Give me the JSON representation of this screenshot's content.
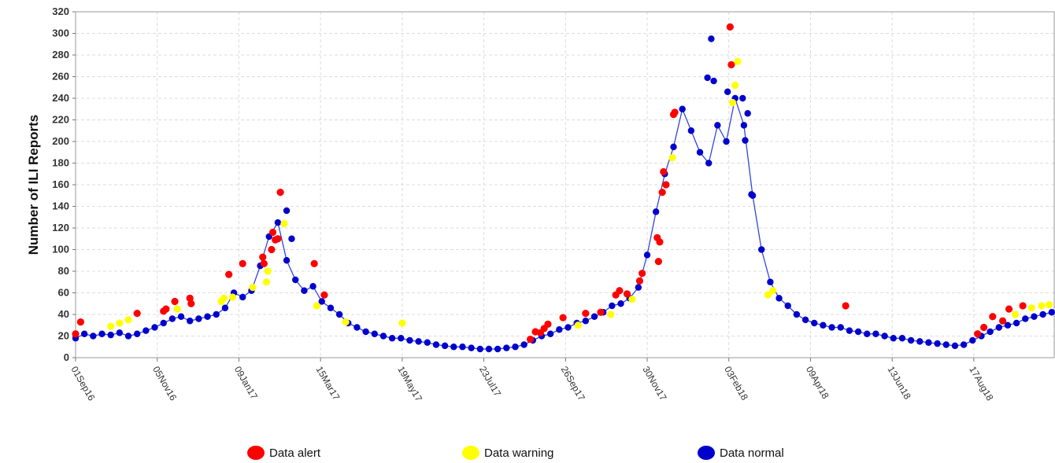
{
  "chart_data": {
    "type": "scatter",
    "ylabel": "Number of ILI Reports",
    "xlabel": "",
    "ylim": [
      0,
      320
    ],
    "y_ticks": [
      0,
      20,
      40,
      60,
      80,
      100,
      120,
      140,
      160,
      180,
      200,
      220,
      240,
      260,
      280,
      300,
      320
    ],
    "x_start": "01Sep16",
    "x_end": "20Oct18",
    "x_tick_labels": [
      "01Sep16",
      "05Nov16",
      "09Jan17",
      "15Mar17",
      "19May17",
      "23Jul17",
      "26Sep17",
      "30Nov17",
      "03Feb18",
      "09Apr18",
      "13Jun18",
      "17Aug18"
    ],
    "grid": true,
    "legend_placement": "bottom",
    "colors": {
      "alert": "#ff0000",
      "warning": "#ffff00",
      "normal": "#0000cc",
      "line": "#3344dd"
    },
    "legend": [
      {
        "key": "alert",
        "label": "Data alert"
      },
      {
        "key": "warning",
        "label": "Data warning"
      },
      {
        "key": "normal",
        "label": "Data normal"
      }
    ],
    "series_weekly_smoothed": {
      "name": "",
      "x": [
        "01Sep16",
        "08Sep16",
        "15Sep16",
        "22Sep16",
        "29Sep16",
        "06Oct16",
        "13Oct16",
        "20Oct16",
        "27Oct16",
        "03Nov16",
        "10Nov16",
        "17Nov16",
        "24Nov16",
        "01Dec16",
        "08Dec16",
        "15Dec16",
        "22Dec16",
        "29Dec16",
        "05Jan17",
        "12Jan17",
        "19Jan17",
        "26Jan17",
        "02Feb17",
        "09Feb17",
        "16Feb17",
        "23Feb17",
        "02Mar17",
        "09Mar17",
        "16Mar17",
        "23Mar17",
        "30Mar17",
        "06Apr17",
        "13Apr17",
        "20Apr17",
        "27Apr17",
        "04May17",
        "11May17",
        "18May17",
        "25May17",
        "01Jun17",
        "08Jun17",
        "15Jun17",
        "22Jun17",
        "29Jun17",
        "06Jul17",
        "13Jul17",
        "20Jul17",
        "27Jul17",
        "03Aug17",
        "10Aug17",
        "17Aug17",
        "24Aug17",
        "31Aug17",
        "07Sep17",
        "14Sep17",
        "21Sep17",
        "28Sep17",
        "05Oct17",
        "12Oct17",
        "19Oct17",
        "26Oct17",
        "02Nov17",
        "09Nov17",
        "16Nov17",
        "23Nov17",
        "30Nov17",
        "07Dec17",
        "14Dec17",
        "21Dec17",
        "28Dec17",
        "04Jan18",
        "11Jan18",
        "18Jan18",
        "25Jan18",
        "01Feb18",
        "08Feb18",
        "15Feb18",
        "22Feb18",
        "01Mar18",
        "08Mar18",
        "15Mar18",
        "22Mar18",
        "29Mar18",
        "05Apr18",
        "12Apr18",
        "19Apr18",
        "26Apr18",
        "03May18",
        "10May18",
        "17May18",
        "24May18",
        "31May18",
        "07Jun18",
        "14Jun18",
        "21Jun18",
        "28Jun18",
        "05Jul18",
        "12Jul18",
        "19Jul18",
        "26Jul18",
        "02Aug18",
        "09Aug18",
        "16Aug18",
        "23Aug18",
        "30Aug18",
        "06Sep18",
        "13Sep18",
        "20Sep18",
        "27Sep18",
        "04Oct18",
        "11Oct18",
        "18Oct18"
      ],
      "values": [
        18,
        22,
        20,
        22,
        21,
        23,
        20,
        22,
        25,
        28,
        32,
        36,
        38,
        34,
        36,
        38,
        40,
        46,
        60,
        56,
        62,
        85,
        112,
        125,
        90,
        72,
        62,
        66,
        52,
        46,
        40,
        32,
        28,
        24,
        22,
        20,
        18,
        18,
        16,
        15,
        14,
        12,
        11,
        10,
        10,
        9,
        8,
        8,
        8,
        9,
        10,
        12,
        16,
        20,
        22,
        26,
        28,
        32,
        34,
        38,
        42,
        48,
        50,
        55,
        65,
        95,
        135,
        170,
        195,
        230,
        210,
        190,
        180,
        215,
        200,
        240,
        215,
        150,
        100,
        70,
        55,
        48,
        40,
        35,
        32,
        30,
        28,
        28,
        25,
        24,
        22,
        22,
        20,
        18,
        18,
        16,
        15,
        14,
        13,
        12,
        11,
        12,
        16,
        20,
        24,
        28,
        30,
        32,
        36,
        38,
        40,
        42
      ]
    },
    "highlighted_points": [
      {
        "x": "01Sep16",
        "y": 22,
        "status": "alert"
      },
      {
        "x": "05Sep16",
        "y": 33,
        "status": "alert"
      },
      {
        "x": "29Sep16",
        "y": 29,
        "status": "warning"
      },
      {
        "x": "06Oct16",
        "y": 32,
        "status": "warning"
      },
      {
        "x": "13Oct16",
        "y": 35,
        "status": "warning"
      },
      {
        "x": "20Oct16",
        "y": 41,
        "status": "alert"
      },
      {
        "x": "10Nov16",
        "y": 43,
        "status": "alert"
      },
      {
        "x": "12Nov16",
        "y": 45,
        "status": "alert"
      },
      {
        "x": "19Nov16",
        "y": 52,
        "status": "alert"
      },
      {
        "x": "21Nov16",
        "y": 45,
        "status": "warning"
      },
      {
        "x": "01Dec16",
        "y": 55,
        "status": "alert"
      },
      {
        "x": "02Dec16",
        "y": 50,
        "status": "alert"
      },
      {
        "x": "26Dec16",
        "y": 52,
        "status": "warning"
      },
      {
        "x": "28Dec16",
        "y": 55,
        "status": "warning"
      },
      {
        "x": "01Jan17",
        "y": 77,
        "status": "alert"
      },
      {
        "x": "04Jan17",
        "y": 56,
        "status": "warning"
      },
      {
        "x": "12Jan17",
        "y": 87,
        "status": "alert"
      },
      {
        "x": "20Jan17",
        "y": 65,
        "status": "warning"
      },
      {
        "x": "28Jan17",
        "y": 93,
        "status": "alert"
      },
      {
        "x": "29Jan17",
        "y": 87,
        "status": "alert"
      },
      {
        "x": "31Jan17",
        "y": 70,
        "status": "warning"
      },
      {
        "x": "01Feb17",
        "y": 80,
        "status": "warning"
      },
      {
        "x": "04Feb17",
        "y": 100,
        "status": "alert"
      },
      {
        "x": "05Feb17",
        "y": 116,
        "status": "alert"
      },
      {
        "x": "07Feb17",
        "y": 109,
        "status": "alert"
      },
      {
        "x": "09Feb17",
        "y": 110,
        "status": "alert"
      },
      {
        "x": "11Feb17",
        "y": 153,
        "status": "alert"
      },
      {
        "x": "14Feb17",
        "y": 124,
        "status": "warning"
      },
      {
        "x": "10Mar17",
        "y": 87,
        "status": "alert"
      },
      {
        "x": "12Mar17",
        "y": 48,
        "status": "warning"
      },
      {
        "x": "18Mar17",
        "y": 58,
        "status": "alert"
      },
      {
        "x": "04Apr17",
        "y": 33,
        "status": "warning"
      },
      {
        "x": "19May17",
        "y": 32,
        "status": "warning"
      },
      {
        "x": "29Aug17",
        "y": 17,
        "status": "alert"
      },
      {
        "x": "02Sep17",
        "y": 24,
        "status": "alert"
      },
      {
        "x": "06Sep17",
        "y": 23,
        "status": "alert"
      },
      {
        "x": "09Sep17",
        "y": 27,
        "status": "alert"
      },
      {
        "x": "12Sep17",
        "y": 31,
        "status": "alert"
      },
      {
        "x": "24Sep17",
        "y": 37,
        "status": "alert"
      },
      {
        "x": "06Oct17",
        "y": 30,
        "status": "warning"
      },
      {
        "x": "12Oct17",
        "y": 41,
        "status": "alert"
      },
      {
        "x": "24Oct17",
        "y": 42,
        "status": "alert"
      },
      {
        "x": "01Nov17",
        "y": 40,
        "status": "warning"
      },
      {
        "x": "05Nov17",
        "y": 58,
        "status": "alert"
      },
      {
        "x": "08Nov17",
        "y": 62,
        "status": "alert"
      },
      {
        "x": "14Nov17",
        "y": 59,
        "status": "alert"
      },
      {
        "x": "18Nov17",
        "y": 54,
        "status": "warning"
      },
      {
        "x": "24Nov17",
        "y": 71,
        "status": "alert"
      },
      {
        "x": "26Nov17",
        "y": 78,
        "status": "alert"
      },
      {
        "x": "08Dec17",
        "y": 111,
        "status": "alert"
      },
      {
        "x": "09Dec17",
        "y": 89,
        "status": "alert"
      },
      {
        "x": "10Dec17",
        "y": 107,
        "status": "alert"
      },
      {
        "x": "12Dec17",
        "y": 153,
        "status": "alert"
      },
      {
        "x": "13Dec17",
        "y": 172,
        "status": "alert"
      },
      {
        "x": "15Dec17",
        "y": 160,
        "status": "alert"
      },
      {
        "x": "20Dec17",
        "y": 185,
        "status": "warning"
      },
      {
        "x": "21Dec17",
        "y": 225,
        "status": "alert"
      },
      {
        "x": "22Dec17",
        "y": 227,
        "status": "alert"
      },
      {
        "x": "04Feb18",
        "y": 306,
        "status": "alert"
      },
      {
        "x": "05Feb18",
        "y": 271,
        "status": "alert"
      },
      {
        "x": "06Feb18",
        "y": 236,
        "status": "warning"
      },
      {
        "x": "08Feb18",
        "y": 252,
        "status": "warning"
      },
      {
        "x": "10Feb18",
        "y": 274,
        "status": "warning"
      },
      {
        "x": "06Mar18",
        "y": 58,
        "status": "warning"
      },
      {
        "x": "10Mar18",
        "y": 62,
        "status": "warning"
      },
      {
        "x": "07May18",
        "y": 48,
        "status": "alert"
      },
      {
        "x": "20Aug18",
        "y": 22,
        "status": "alert"
      },
      {
        "x": "25Aug18",
        "y": 28,
        "status": "alert"
      },
      {
        "x": "01Sep18",
        "y": 38,
        "status": "alert"
      },
      {
        "x": "09Sep18",
        "y": 34,
        "status": "alert"
      },
      {
        "x": "14Sep18",
        "y": 45,
        "status": "alert"
      },
      {
        "x": "19Sep18",
        "y": 40,
        "status": "warning"
      },
      {
        "x": "25Sep18",
        "y": 48,
        "status": "alert"
      },
      {
        "x": "02Oct18",
        "y": 46,
        "status": "warning"
      },
      {
        "x": "10Oct18",
        "y": 48,
        "status": "warning"
      },
      {
        "x": "16Oct18",
        "y": 49,
        "status": "warning"
      }
    ],
    "peak_points": [
      {
        "x": "20Jan18",
        "y": 295
      },
      {
        "x": "17Jan18",
        "y": 259
      },
      {
        "x": "22Jan18",
        "y": 256
      },
      {
        "x": "18Feb18",
        "y": 226
      },
      {
        "x": "02Feb18",
        "y": 246
      },
      {
        "x": "14Feb18",
        "y": 240
      },
      {
        "x": "16Feb18",
        "y": 201
      },
      {
        "x": "21Feb18",
        "y": 151
      },
      {
        "x": "16Feb17",
        "y": 136
      },
      {
        "x": "20Feb17",
        "y": 110
      }
    ]
  }
}
